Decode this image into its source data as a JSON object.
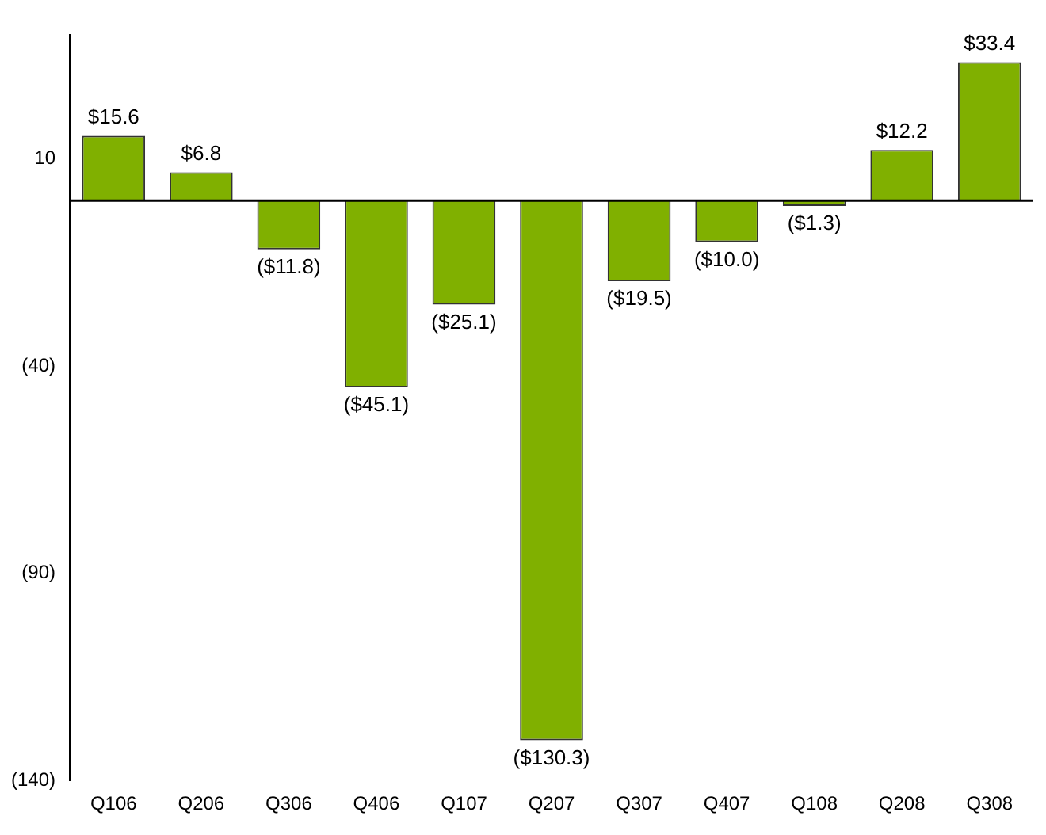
{
  "chart_data": {
    "type": "bar",
    "categories": [
      "Q106",
      "Q206",
      "Q306",
      "Q406",
      "Q107",
      "Q207",
      "Q307",
      "Q407",
      "Q108",
      "Q208",
      "Q308"
    ],
    "values": [
      15.6,
      6.8,
      -11.8,
      -45.1,
      -25.1,
      -130.3,
      -19.5,
      -10.0,
      -1.3,
      12.2,
      33.4
    ],
    "value_labels": [
      "$15.6",
      "$6.8",
      "($11.8)",
      "($45.1)",
      "($25.1)",
      "($130.3)",
      "($19.5)",
      "($10.0)",
      "($1.3)",
      "$12.2",
      "$33.4"
    ],
    "color": "#80b000",
    "ylim": [
      -140,
      40
    ],
    "yticks": [
      {
        "value": 10,
        "label": "10"
      },
      {
        "value": -40,
        "label": "(40)"
      },
      {
        "value": -90,
        "label": "(90)"
      },
      {
        "value": -140,
        "label": "(140)"
      }
    ],
    "ref_lines": [
      {
        "axis": "y",
        "value": 0,
        "label": null,
        "color": "#000000"
      }
    ],
    "grid": false,
    "legend": false
  }
}
